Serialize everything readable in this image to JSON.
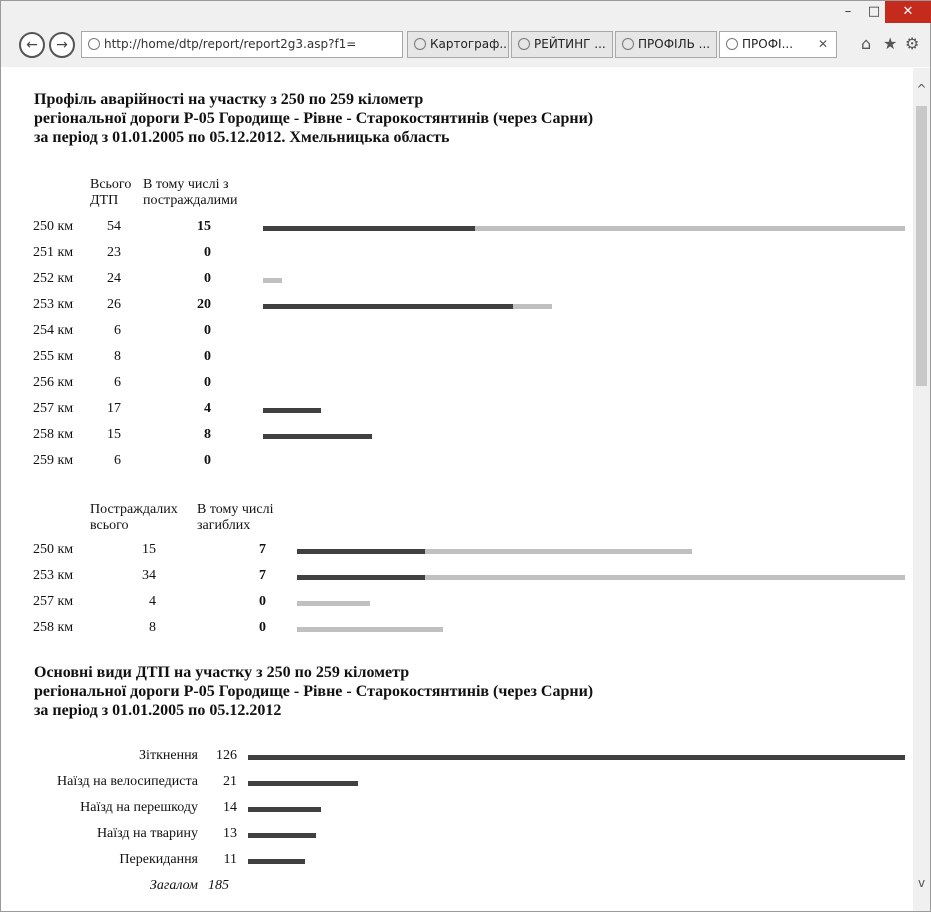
{
  "browser": {
    "address_url": "http://home/dtp/report/report2g3.asp?f1=",
    "tabs": [
      "Картограф...",
      "РЕЙТИНГ ...",
      "ПРОФІЛЬ ...",
      "ПРОФІ..."
    ],
    "active_tab_index": 3
  },
  "section1": {
    "title_lines": [
      "Профіль аварійності на участку з 250 по 259 кілометр",
      "регіональної дороги Р-05 Городище - Рівне - Старокостянтинів (через Сарни)",
      "за період з 01.01.2005 по 05.12.2012. Хмельницька область"
    ],
    "col1_header": [
      "Всього",
      "ДТП"
    ],
    "col2_header": [
      "В тому числі з",
      "постраждалими"
    ],
    "rows": [
      {
        "km": "250 км",
        "total": "54",
        "injured": "15"
      },
      {
        "km": "251 км",
        "total": "23",
        "injured": "0"
      },
      {
        "km": "252 км",
        "total": "24",
        "injured": "0"
      },
      {
        "km": "253 км",
        "total": "26",
        "injured": "20"
      },
      {
        "km": "254 км",
        "total": "6",
        "injured": "0"
      },
      {
        "km": "255 км",
        "total": "8",
        "injured": "0"
      },
      {
        "km": "256 км",
        "total": "6",
        "injured": "0"
      },
      {
        "km": "257 км",
        "total": "17",
        "injured": "4"
      },
      {
        "km": "258 км",
        "total": "15",
        "injured": "8"
      },
      {
        "km": "259 км",
        "total": "6",
        "injured": "0"
      }
    ],
    "bars": [
      {
        "dark": 0.33,
        "light": 1.0
      },
      {
        "dark": 0.0,
        "light": 0.0
      },
      {
        "dark": 0.0,
        "light": 0.03
      },
      {
        "dark": 0.39,
        "light": 0.45
      },
      {
        "dark": 0.0,
        "light": 0.0
      },
      {
        "dark": 0.0,
        "light": 0.0
      },
      {
        "dark": 0.0,
        "light": 0.0
      },
      {
        "dark": 0.09,
        "light": 0.0
      },
      {
        "dark": 0.17,
        "light": 0.0
      },
      {
        "dark": 0.0,
        "light": 0.0
      }
    ]
  },
  "section2": {
    "col1_header": [
      "Постраждалих",
      "всього"
    ],
    "col2_header": [
      "В тому числі",
      "загиблих"
    ],
    "rows": [
      {
        "km": "250 км",
        "injured": "15",
        "killed": "7"
      },
      {
        "km": "253 км",
        "injured": "34",
        "killed": "7"
      },
      {
        "km": "257 км",
        "injured": "4",
        "killed": "0"
      },
      {
        "km": "258 км",
        "injured": "8",
        "killed": "0"
      }
    ],
    "bars": [
      {
        "dark": 0.21,
        "light": 0.65
      },
      {
        "dark": 0.21,
        "light": 1.0
      },
      {
        "dark": 0.0,
        "light": 0.12
      },
      {
        "dark": 0.0,
        "light": 0.24
      }
    ]
  },
  "section3": {
    "title_lines": [
      "Основні види ДТП на участку з 250 по 259 кілометр",
      "регіональної дороги Р-05 Городище - Рівне - Старокостянтинів (через Сарни)",
      "за період з 01.01.2005 по 05.12.2012"
    ],
    "rows": [
      {
        "label": "Зіткнення",
        "value": 126
      },
      {
        "label": "Наїзд на велосипедиста",
        "value": 21
      },
      {
        "label": "Наїзд на перешкоду",
        "value": 14
      },
      {
        "label": "Наїзд на тварину",
        "value": 13
      },
      {
        "label": "Перекидання",
        "value": 11
      }
    ],
    "total_label": "Загалом",
    "total_value": "185"
  },
  "colors": {
    "dark_bar": "#404040",
    "light_bar": "#c0c0c0"
  }
}
